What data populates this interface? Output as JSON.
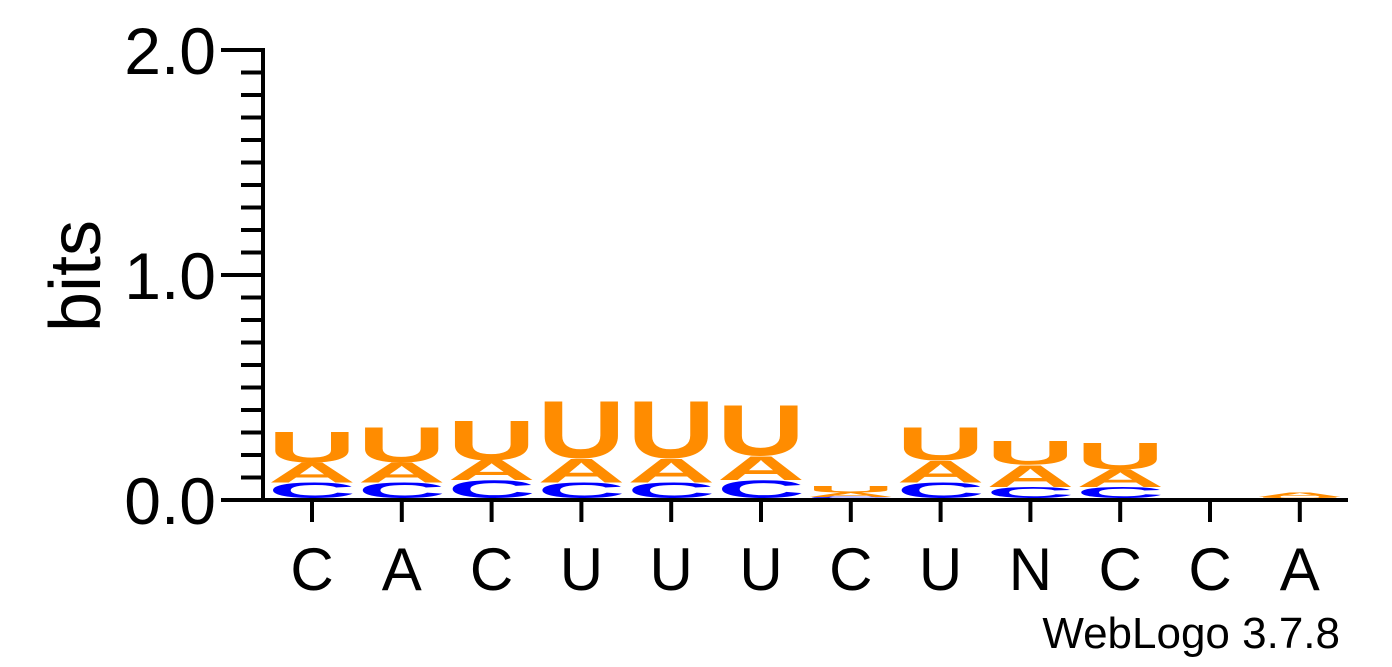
{
  "chart_data": {
    "type": "sequence-logo",
    "ylabel": "bits",
    "ylim": [
      0,
      2
    ],
    "yticks": [
      "0.0",
      "1.0",
      "2.0"
    ],
    "categories": [
      "C",
      "A",
      "C",
      "U",
      "U",
      "U",
      "C",
      "U",
      "N",
      "C",
      "C",
      "A"
    ],
    "series": [
      {
        "name": "C",
        "values": [
          0.07,
          0.07,
          0.08,
          0.07,
          0.07,
          0.08,
          0.005,
          0.07,
          0.05,
          0.05,
          0.0,
          0.0
        ]
      },
      {
        "name": "A",
        "values": [
          0.09,
          0.09,
          0.09,
          0.11,
          0.11,
          0.11,
          0.02,
          0.1,
          0.1,
          0.08,
          0.0,
          0.02
        ]
      },
      {
        "name": "U",
        "values": [
          0.14,
          0.16,
          0.18,
          0.26,
          0.26,
          0.23,
          0.03,
          0.15,
          0.11,
          0.12,
          0.0,
          0.005
        ]
      }
    ],
    "colors": {
      "C": "#0000ff",
      "A": "#ff8c00",
      "U": "#ff8c00"
    },
    "credit": "WebLogo 3.7.8"
  }
}
